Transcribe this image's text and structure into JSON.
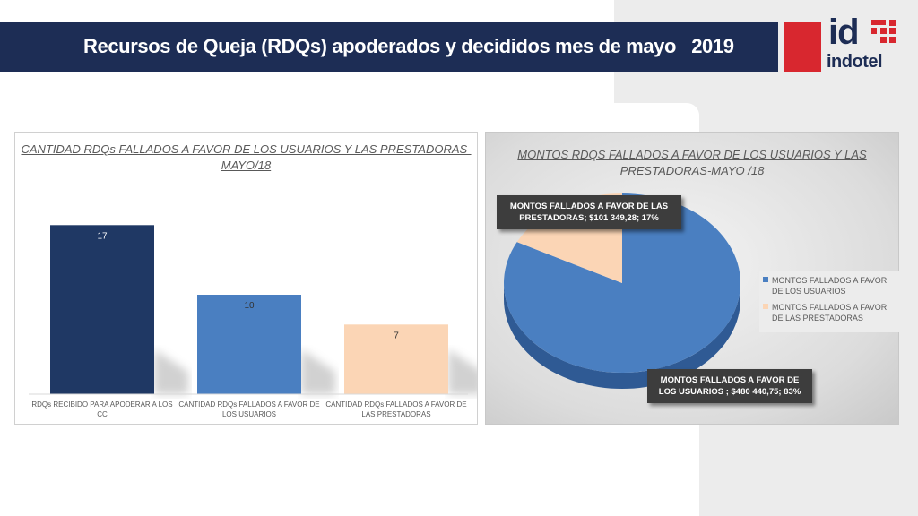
{
  "page": {
    "title": "Recursos de Queja (RDQs) apoderados y decididos mes de mayo   2019",
    "logo_id": "id",
    "logo_word": "indotel"
  },
  "colors": {
    "navy": "#1d2d55",
    "dark_bar": "#1f3864",
    "mid_blue": "#4a7fc1",
    "peach": "#fbd5b5",
    "red": "#d8272f"
  },
  "chart_data": [
    {
      "type": "bar",
      "title": "CANTIDAD RDQs FALLADOS A FAVOR DE LOS USUARIOS Y LAS PRESTADORAS-MAYO/18",
      "categories": [
        "RDQs RECIBIDO PARA APODERAR A LOS CC",
        "CANTIDAD RDQs FALLADOS A FAVOR DE LOS USUARIOS",
        "CANTIDAD RDQs FALLADOS A FAVOR DE LAS PRESTADORAS"
      ],
      "values": [
        17,
        10,
        7
      ],
      "data_labels": [
        "17",
        "10",
        "7"
      ],
      "bar_colors": [
        "#1f3864",
        "#4a7fc1",
        "#fbd5b5"
      ],
      "ylim": [
        0,
        20
      ],
      "grid": false,
      "legend": false
    },
    {
      "type": "pie",
      "title": "MONTOS RDQS FALLADOS A FAVOR DE LOS  USUARIOS Y LAS PRESTADORAS-MAYO /18",
      "labels": [
        "MONTOS  FALLADOS A FAVOR DE LOS USUARIOS",
        "MONTOS FALLADOS  A FAVOR DE LAS PRESTADORAS"
      ],
      "values": [
        480440.75,
        101349.28
      ],
      "percentages": [
        83,
        17
      ],
      "colors": [
        "#4a7fc1",
        "#fbd5b5"
      ],
      "data_labels": [
        "MONTOS  FALLADOS A FAVOR DE LOS USUARIOS ; $480 440,75; 83%",
        "MONTOS FALLADOS  A FAVOR DE LAS PRESTADORAS; $101 349,28; 17%"
      ],
      "legend": "right"
    }
  ]
}
